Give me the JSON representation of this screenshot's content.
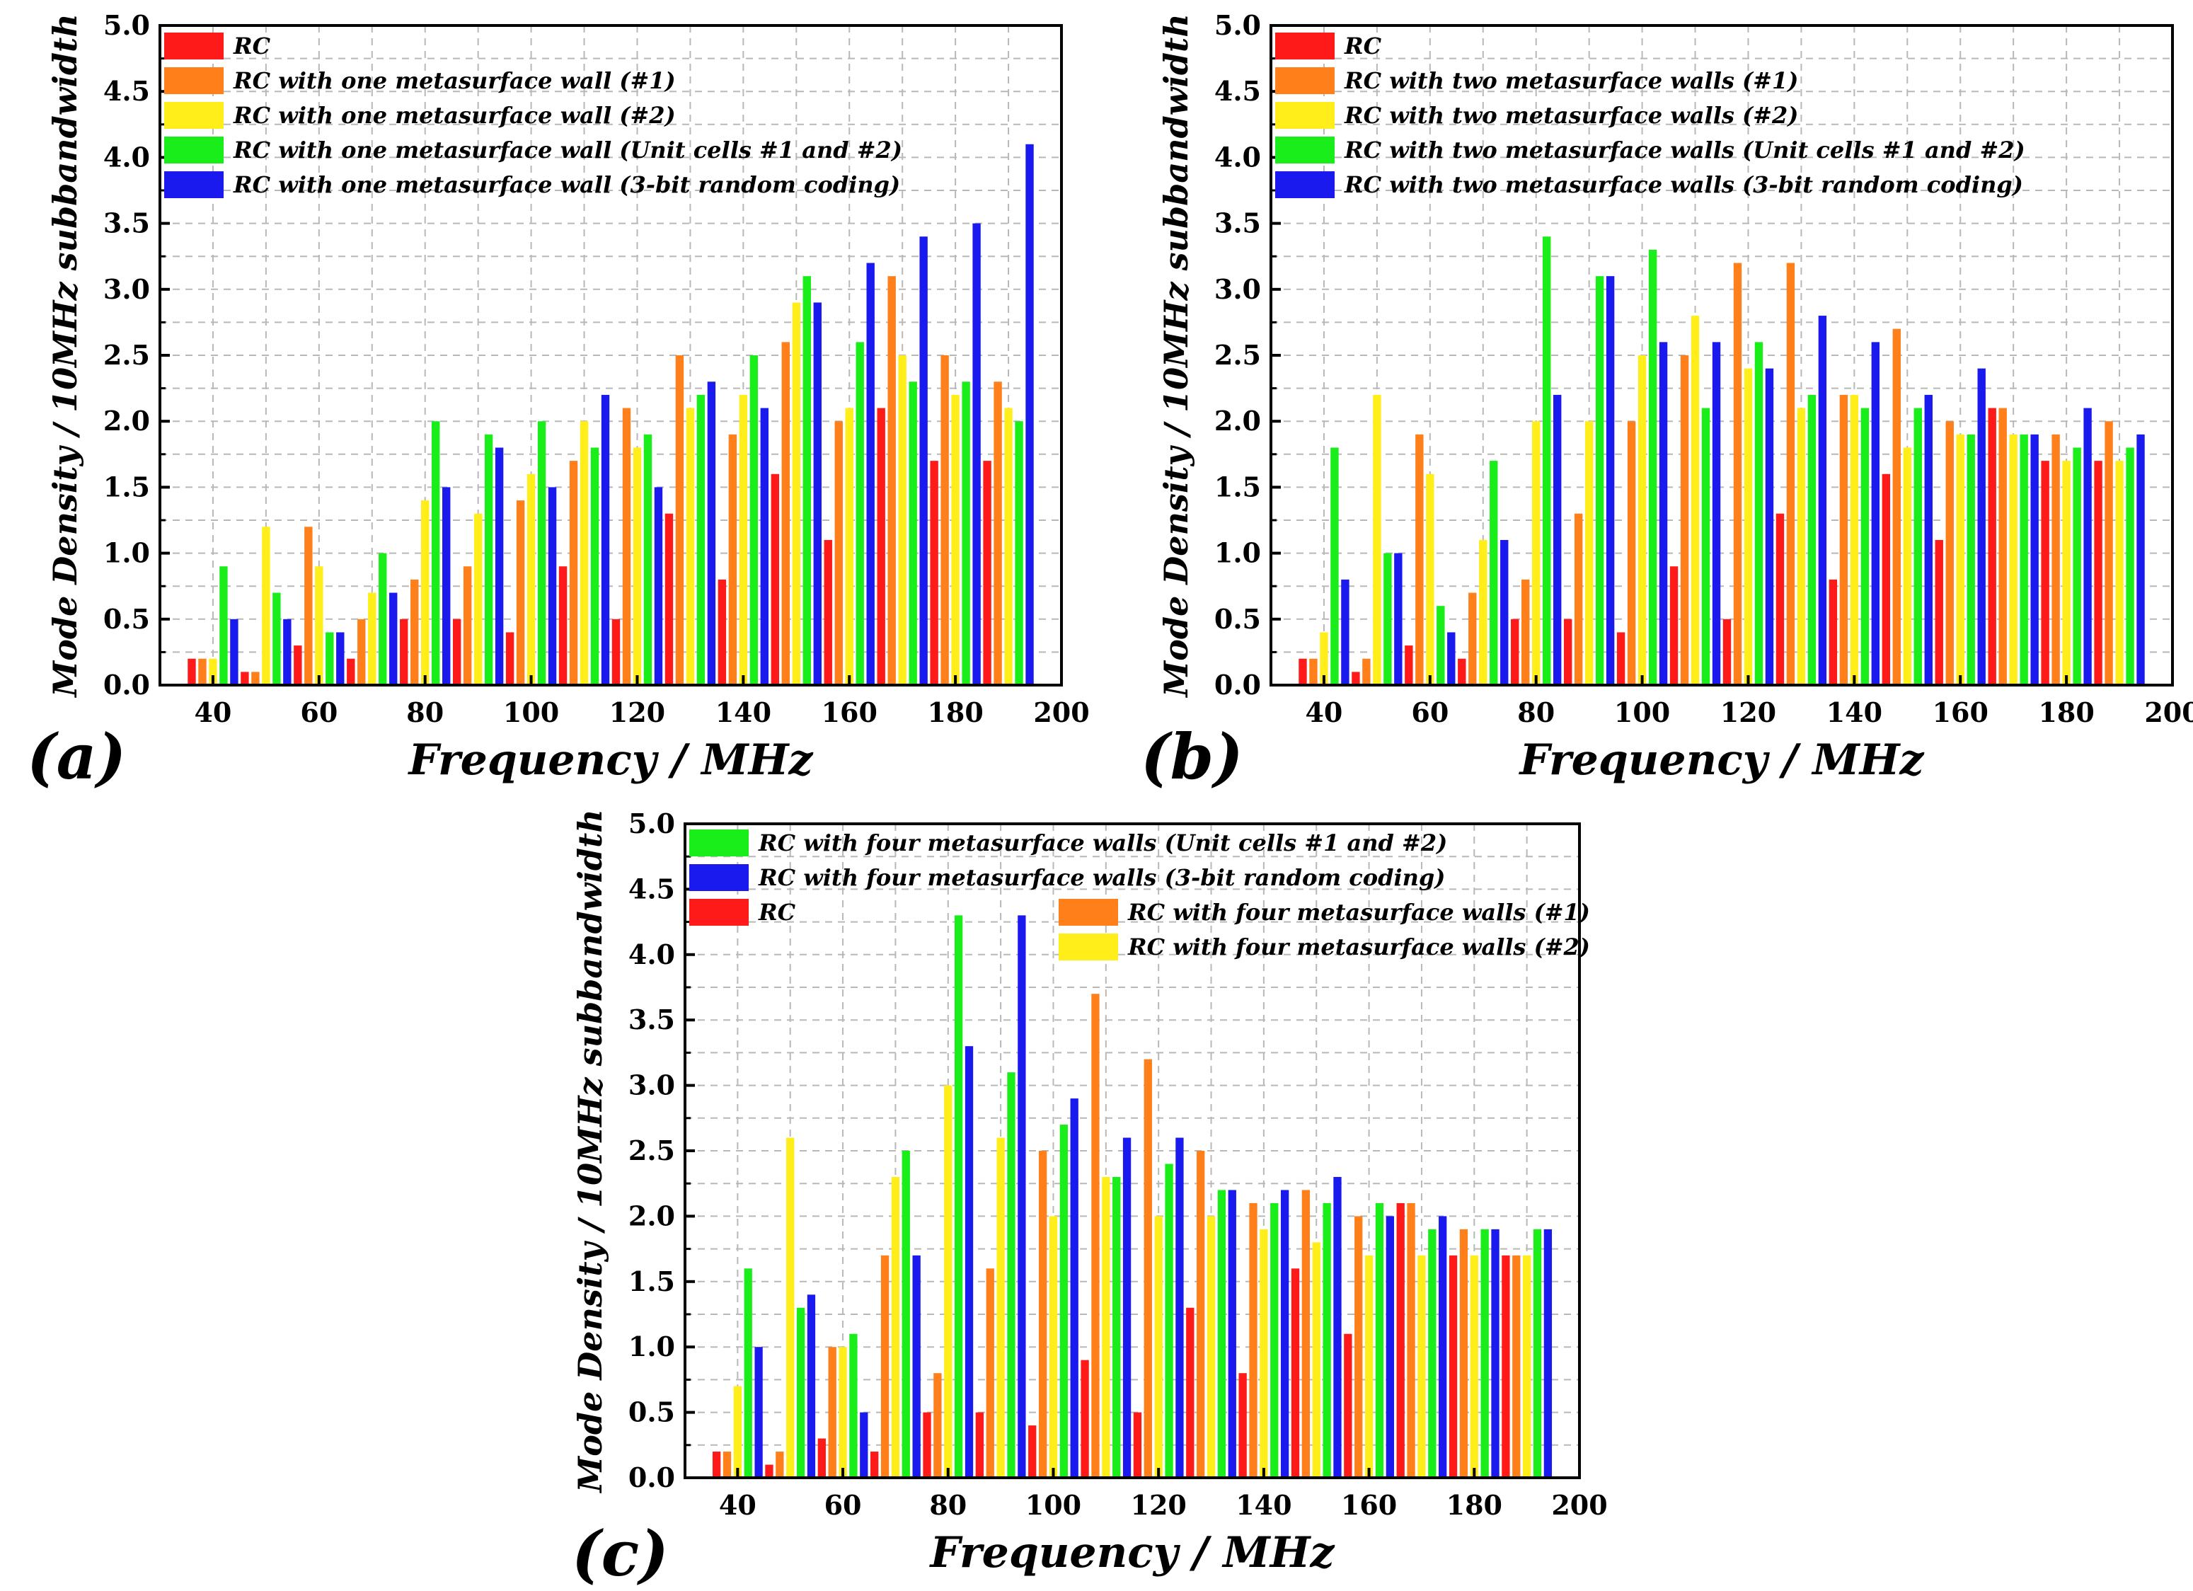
{
  "x_axis_label": "Frequency / MHz",
  "y_axis_label": "Mode Density / 10MHz subbandwidth",
  "colors": {
    "RC": "#ff1a1a",
    "wall1": "#ff7f1a",
    "wall2": "#ffee1a",
    "both": "#1aee1a",
    "coding": "#1a1aee"
  },
  "chart_data": [
    {
      "type": "bar",
      "panel_label": "(a)",
      "categories": [
        "35-45",
        "45-55",
        "55-65",
        "65-75",
        "75-85",
        "85-95",
        "95-105",
        "105-115",
        "115-125",
        "125-135",
        "135-145",
        "145-155",
        "155-165",
        "165-175",
        "175-185",
        "185-195"
      ],
      "x_ticks": [
        40,
        60,
        80,
        100,
        120,
        140,
        160,
        180,
        200
      ],
      "xlim": [
        30,
        200
      ],
      "y_ticks": [
        "0.0",
        "0.5",
        "1.0",
        "1.5",
        "2.0",
        "2.5",
        "3.0",
        "3.5",
        "4.0",
        "4.5",
        "5.0"
      ],
      "ylim": [
        0,
        5
      ],
      "grid": true,
      "legend": "top-left",
      "series": [
        {
          "name": "RC",
          "color_key": "RC",
          "values": [
            0.2,
            0.1,
            0.3,
            0.2,
            0.5,
            0.5,
            0.4,
            0.9,
            0.5,
            1.3,
            0.8,
            1.6,
            1.1,
            2.1,
            1.7,
            1.7
          ]
        },
        {
          "name": "RC with one metasurface wall (#1)",
          "color_key": "wall1",
          "values": [
            0.2,
            0.1,
            1.2,
            0.5,
            0.8,
            0.9,
            1.4,
            1.7,
            2.1,
            2.5,
            1.9,
            2.6,
            2.0,
            3.1,
            2.5,
            2.3
          ]
        },
        {
          "name": "RC with one metasurface wall (#2)",
          "color_key": "wall2",
          "values": [
            0.2,
            1.2,
            0.9,
            0.7,
            1.4,
            1.3,
            1.6,
            2.0,
            1.8,
            2.1,
            2.2,
            2.9,
            2.1,
            2.5,
            2.2,
            2.1
          ]
        },
        {
          "name": "RC with one metasurface wall (Unit cells #1 and #2)",
          "color_key": "both",
          "values": [
            0.9,
            0.7,
            0.4,
            1.0,
            2.0,
            1.9,
            2.0,
            1.8,
            1.9,
            2.2,
            2.5,
            3.1,
            2.6,
            2.3,
            2.3,
            2.0
          ]
        },
        {
          "name": "RC with one metasurface wall (3-bit random coding)",
          "color_key": "coding",
          "values": [
            0.5,
            0.5,
            0.4,
            0.7,
            1.5,
            1.8,
            1.5,
            2.2,
            1.5,
            2.3,
            2.1,
            2.9,
            3.2,
            3.4,
            3.5,
            4.1
          ]
        }
      ],
      "legend_rows": [
        [
          0
        ],
        [
          1
        ],
        [
          2
        ],
        [
          3
        ],
        [
          4
        ]
      ]
    },
    {
      "type": "bar",
      "panel_label": "(b)",
      "categories": [
        "35-45",
        "45-55",
        "55-65",
        "65-75",
        "75-85",
        "85-95",
        "95-105",
        "105-115",
        "115-125",
        "125-135",
        "135-145",
        "145-155",
        "155-165",
        "165-175",
        "175-185",
        "185-195"
      ],
      "x_ticks": [
        40,
        60,
        80,
        100,
        120,
        140,
        160,
        180,
        200
      ],
      "xlim": [
        30,
        200
      ],
      "y_ticks": [
        "0.0",
        "0.5",
        "1.0",
        "1.5",
        "2.0",
        "2.5",
        "3.0",
        "3.5",
        "4.0",
        "4.5",
        "5.0"
      ],
      "ylim": [
        0,
        5
      ],
      "grid": true,
      "legend": "top-left",
      "series": [
        {
          "name": "RC",
          "color_key": "RC",
          "values": [
            0.2,
            0.1,
            0.3,
            0.2,
            0.5,
            0.5,
            0.4,
            0.9,
            0.5,
            1.3,
            0.8,
            1.6,
            1.1,
            2.1,
            1.7,
            1.7
          ]
        },
        {
          "name": "RC with two metasurface walls (#1)",
          "color_key": "wall1",
          "values": [
            0.2,
            0.2,
            1.9,
            0.7,
            0.8,
            1.3,
            2.0,
            2.5,
            3.2,
            3.2,
            2.2,
            2.7,
            2.0,
            2.1,
            1.9,
            2.0
          ]
        },
        {
          "name": "RC with two metasurface walls (#2)",
          "color_key": "wall2",
          "values": [
            0.4,
            2.2,
            1.6,
            1.1,
            2.0,
            2.0,
            2.5,
            2.8,
            2.4,
            2.1,
            2.2,
            1.8,
            1.9,
            1.9,
            1.7,
            1.7
          ]
        },
        {
          "name": "RC with two metasurface walls (Unit cells #1 and #2)",
          "color_key": "both",
          "values": [
            1.8,
            1.0,
            0.6,
            1.7,
            3.4,
            3.1,
            3.3,
            2.1,
            2.6,
            2.2,
            2.1,
            2.1,
            1.9,
            1.9,
            1.8,
            1.8
          ]
        },
        {
          "name": "RC with two metasurface walls (3-bit random coding)",
          "color_key": "coding",
          "values": [
            0.8,
            1.0,
            0.4,
            1.1,
            2.2,
            3.1,
            2.6,
            2.6,
            2.4,
            2.8,
            2.6,
            2.2,
            2.4,
            1.9,
            2.1,
            1.9
          ]
        }
      ],
      "legend_rows": [
        [
          0
        ],
        [
          1
        ],
        [
          2
        ],
        [
          3
        ],
        [
          4
        ]
      ]
    },
    {
      "type": "bar",
      "panel_label": "(c)",
      "categories": [
        "35-45",
        "45-55",
        "55-65",
        "65-75",
        "75-85",
        "85-95",
        "95-105",
        "105-115",
        "115-125",
        "125-135",
        "135-145",
        "145-155",
        "155-165",
        "165-175",
        "175-185",
        "185-195"
      ],
      "x_ticks": [
        40,
        60,
        80,
        100,
        120,
        140,
        160,
        180,
        200
      ],
      "xlim": [
        30,
        200
      ],
      "y_ticks": [
        "0.0",
        "0.5",
        "1.0",
        "1.5",
        "2.0",
        "2.5",
        "3.0",
        "3.5",
        "4.0",
        "4.5",
        "5.0"
      ],
      "ylim": [
        0,
        5
      ],
      "grid": true,
      "legend": "top-left",
      "series": [
        {
          "name": "RC",
          "color_key": "RC",
          "values": [
            0.2,
            0.1,
            0.3,
            0.2,
            0.5,
            0.5,
            0.4,
            0.9,
            0.5,
            1.3,
            0.8,
            1.6,
            1.1,
            2.1,
            1.7,
            1.7
          ]
        },
        {
          "name": "RC with four metasurface walls (#1)",
          "color_key": "wall1",
          "values": [
            0.2,
            0.2,
            1.0,
            1.7,
            0.8,
            1.6,
            2.5,
            3.7,
            3.2,
            2.5,
            2.1,
            2.2,
            2.0,
            2.1,
            1.9,
            1.7
          ]
        },
        {
          "name": "RC with four metasurface walls (#2)",
          "color_key": "wall2",
          "values": [
            0.7,
            2.6,
            1.0,
            2.3,
            3.0,
            2.6,
            2.0,
            2.3,
            2.0,
            2.0,
            1.9,
            1.8,
            1.7,
            1.7,
            1.7,
            1.7
          ]
        },
        {
          "name": "RC with four metasurface walls (Unit cells #1 and #2)",
          "color_key": "both",
          "values": [
            1.6,
            1.3,
            1.1,
            2.5,
            4.3,
            3.1,
            2.7,
            2.3,
            2.4,
            2.2,
            2.1,
            2.1,
            2.1,
            1.9,
            1.9,
            1.9
          ]
        },
        {
          "name": "RC with four metasurface walls (3-bit random coding)",
          "color_key": "coding",
          "values": [
            1.0,
            1.4,
            0.5,
            1.7,
            3.3,
            4.3,
            2.9,
            2.6,
            2.6,
            2.2,
            2.2,
            2.3,
            2.0,
            2.0,
            1.9,
            1.9
          ]
        }
      ],
      "legend_rows": [
        [
          3
        ],
        [
          4
        ],
        [
          0,
          1
        ],
        [
          null,
          2
        ]
      ]
    }
  ]
}
